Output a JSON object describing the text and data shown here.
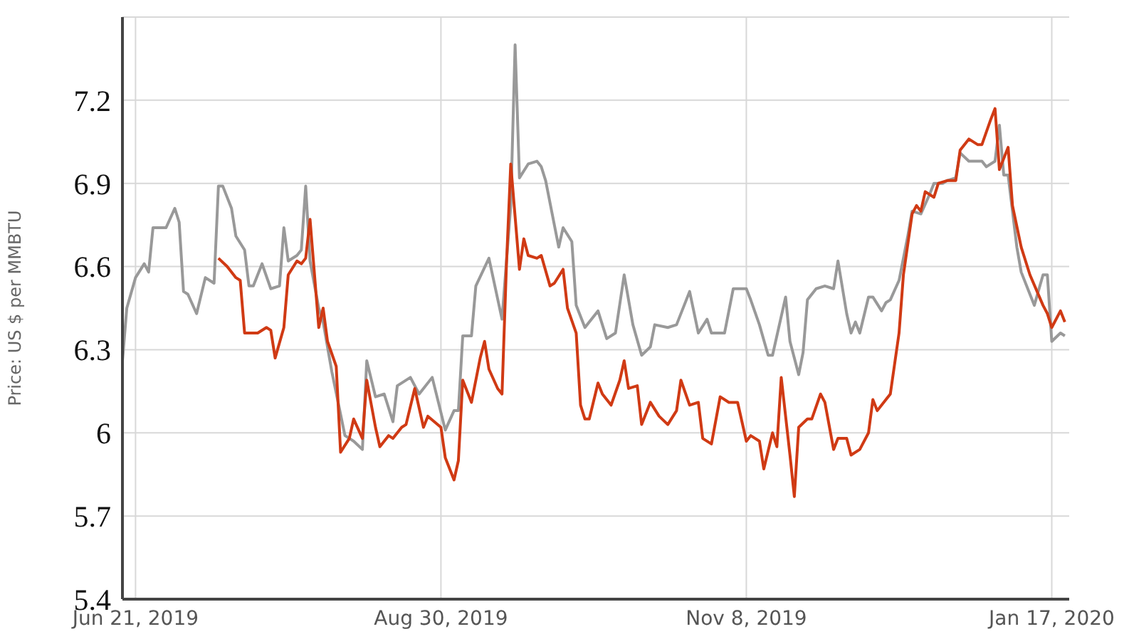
{
  "chart_data": {
    "type": "line",
    "ylabel": "Price: US $ per MMBTU",
    "xlim": [
      "2019-06-18",
      "2020-01-21"
    ],
    "xticks": [
      {
        "value": "2019-06-21",
        "label": "Jun 21, 2019"
      },
      {
        "value": "2019-08-30",
        "label": "Aug 30, 2019"
      },
      {
        "value": "2019-11-08",
        "label": "Nov 8, 2019"
      },
      {
        "value": "2020-01-17",
        "label": "Jan 17, 2020"
      }
    ],
    "ylim": [
      5.4,
      7.5
    ],
    "yticks": [
      5.4,
      5.7,
      6,
      6.3,
      6.6,
      6.9,
      7.2
    ],
    "grid": true,
    "legend": false,
    "series": [
      {
        "color": "#999999",
        "x": [
          "2019-06-18",
          "2019-06-19",
          "2019-06-21",
          "2019-06-23",
          "2019-06-24",
          "2019-06-25",
          "2019-06-28",
          "2019-06-30",
          "2019-07-01",
          "2019-07-02",
          "2019-07-03",
          "2019-07-05",
          "2019-07-07",
          "2019-07-09",
          "2019-07-10",
          "2019-07-11",
          "2019-07-13",
          "2019-07-14",
          "2019-07-16",
          "2019-07-17",
          "2019-07-18",
          "2019-07-20",
          "2019-07-22",
          "2019-07-24",
          "2019-07-25",
          "2019-07-26",
          "2019-07-28",
          "2019-07-29",
          "2019-07-30",
          "2019-07-31",
          "2019-08-02",
          "2019-08-03",
          "2019-08-05",
          "2019-08-08",
          "2019-08-10",
          "2019-08-12",
          "2019-08-13",
          "2019-08-15",
          "2019-08-17",
          "2019-08-19",
          "2019-08-20",
          "2019-08-23",
          "2019-08-25",
          "2019-08-28",
          "2019-08-31",
          "2019-09-02",
          "2019-09-03",
          "2019-09-04",
          "2019-09-06",
          "2019-09-07",
          "2019-09-10",
          "2019-09-13",
          "2019-09-15",
          "2019-09-16",
          "2019-09-17",
          "2019-09-19",
          "2019-09-21",
          "2019-09-22",
          "2019-09-23",
          "2019-09-26",
          "2019-09-27",
          "2019-09-29",
          "2019-09-30",
          "2019-10-02",
          "2019-10-05",
          "2019-10-07",
          "2019-10-09",
          "2019-10-11",
          "2019-10-13",
          "2019-10-15",
          "2019-10-17",
          "2019-10-18",
          "2019-10-21",
          "2019-10-23",
          "2019-10-26",
          "2019-10-28",
          "2019-10-30",
          "2019-10-31",
          "2019-11-03",
          "2019-11-05",
          "2019-11-08",
          "2019-11-09",
          "2019-11-11",
          "2019-11-13",
          "2019-11-14",
          "2019-11-17",
          "2019-11-18",
          "2019-11-20",
          "2019-11-21",
          "2019-11-22",
          "2019-11-24",
          "2019-11-26",
          "2019-11-28",
          "2019-11-29",
          "2019-12-01",
          "2019-12-02",
          "2019-12-03",
          "2019-12-04",
          "2019-12-06",
          "2019-12-07",
          "2019-12-09",
          "2019-12-10",
          "2019-12-11",
          "2019-12-13",
          "2019-12-15",
          "2019-12-16",
          "2019-12-18",
          "2019-12-20",
          "2019-12-21",
          "2019-12-23",
          "2019-12-24",
          "2019-12-26",
          "2019-12-27",
          "2019-12-29",
          "2020-01-01",
          "2020-01-02",
          "2020-01-04",
          "2020-01-05",
          "2020-01-06",
          "2020-01-07",
          "2020-01-09",
          "2020-01-10",
          "2020-01-12",
          "2020-01-13",
          "2020-01-15",
          "2020-01-16",
          "2020-01-17",
          "2020-01-19",
          "2020-01-20"
        ],
        "values": [
          6.26,
          6.45,
          6.56,
          6.61,
          6.58,
          6.74,
          6.74,
          6.81,
          6.76,
          6.51,
          6.5,
          6.43,
          6.56,
          6.54,
          6.89,
          6.89,
          6.81,
          6.71,
          6.66,
          6.53,
          6.53,
          6.61,
          6.52,
          6.53,
          6.74,
          6.62,
          6.64,
          6.66,
          6.89,
          6.62,
          6.45,
          6.4,
          6.22,
          5.99,
          5.97,
          5.94,
          6.26,
          6.13,
          6.14,
          6.04,
          6.17,
          6.2,
          6.14,
          6.2,
          6.01,
          6.08,
          6.08,
          6.35,
          6.35,
          6.53,
          6.63,
          6.41,
          6.82,
          7.4,
          6.92,
          6.97,
          6.98,
          6.96,
          6.91,
          6.67,
          6.74,
          6.69,
          6.46,
          6.38,
          6.44,
          6.34,
          6.36,
          6.57,
          6.39,
          6.28,
          6.31,
          6.39,
          6.38,
          6.39,
          6.51,
          6.36,
          6.41,
          6.36,
          6.36,
          6.52,
          6.52,
          6.48,
          6.39,
          6.28,
          6.28,
          6.49,
          6.33,
          6.21,
          6.29,
          6.48,
          6.52,
          6.53,
          6.52,
          6.62,
          6.43,
          6.36,
          6.4,
          6.36,
          6.49,
          6.49,
          6.44,
          6.47,
          6.48,
          6.55,
          6.71,
          6.8,
          6.79,
          6.86,
          6.9,
          6.9,
          6.91,
          6.92,
          7.01,
          6.98,
          6.98,
          6.96,
          6.98,
          7.11,
          6.93,
          6.93,
          6.67,
          6.58,
          6.5,
          6.46,
          6.57,
          6.57,
          6.33,
          6.36,
          6.35
        ]
      },
      {
        "color": "#d03a14",
        "x": [
          "2019-07-10",
          "2019-07-12",
          "2019-07-14",
          "2019-07-15",
          "2019-07-16",
          "2019-07-19",
          "2019-07-21",
          "2019-07-22",
          "2019-07-23",
          "2019-07-25",
          "2019-07-26",
          "2019-07-28",
          "2019-07-29",
          "2019-07-30",
          "2019-07-31",
          "2019-08-02",
          "2019-08-03",
          "2019-08-04",
          "2019-08-06",
          "2019-08-07",
          "2019-08-09",
          "2019-08-10",
          "2019-08-12",
          "2019-08-13",
          "2019-08-15",
          "2019-08-16",
          "2019-08-18",
          "2019-08-19",
          "2019-08-21",
          "2019-08-22",
          "2019-08-24",
          "2019-08-26",
          "2019-08-27",
          "2019-08-30",
          "2019-08-31",
          "2019-09-02",
          "2019-09-03",
          "2019-09-04",
          "2019-09-06",
          "2019-09-08",
          "2019-09-09",
          "2019-09-10",
          "2019-09-12",
          "2019-09-13",
          "2019-09-14",
          "2019-09-15",
          "2019-09-17",
          "2019-09-18",
          "2019-09-19",
          "2019-09-21",
          "2019-09-22",
          "2019-09-24",
          "2019-09-25",
          "2019-09-27",
          "2019-09-28",
          "2019-09-30",
          "2019-10-01",
          "2019-10-02",
          "2019-10-03",
          "2019-10-05",
          "2019-10-06",
          "2019-10-08",
          "2019-10-10",
          "2019-10-11",
          "2019-10-12",
          "2019-10-14",
          "2019-10-15",
          "2019-10-17",
          "2019-10-19",
          "2019-10-21",
          "2019-10-23",
          "2019-10-24",
          "2019-10-26",
          "2019-10-28",
          "2019-10-29",
          "2019-10-31",
          "2019-11-02",
          "2019-11-04",
          "2019-11-06",
          "2019-11-08",
          "2019-11-09",
          "2019-11-11",
          "2019-11-12",
          "2019-11-14",
          "2019-11-15",
          "2019-11-16",
          "2019-11-18",
          "2019-11-19",
          "2019-11-20",
          "2019-11-22",
          "2019-11-23",
          "2019-11-25",
          "2019-11-26",
          "2019-11-28",
          "2019-11-29",
          "2019-12-01",
          "2019-12-02",
          "2019-12-04",
          "2019-12-06",
          "2019-12-07",
          "2019-12-08",
          "2019-12-10",
          "2019-12-11",
          "2019-12-13",
          "2019-12-14",
          "2019-12-16",
          "2019-12-17",
          "2019-12-18",
          "2019-12-19",
          "2019-12-21",
          "2019-12-22",
          "2019-12-24",
          "2019-12-26",
          "2019-12-27",
          "2019-12-29",
          "2019-12-31",
          "2020-01-01",
          "2020-01-03",
          "2020-01-04",
          "2020-01-05",
          "2020-01-07",
          "2020-01-08",
          "2020-01-10",
          "2020-01-12",
          "2020-01-15",
          "2020-01-16",
          "2020-01-17",
          "2020-01-19",
          "2020-01-20"
        ],
        "values": [
          6.63,
          6.6,
          6.56,
          6.55,
          6.36,
          6.36,
          6.38,
          6.37,
          6.27,
          6.38,
          6.57,
          6.62,
          6.61,
          6.63,
          6.77,
          6.38,
          6.45,
          6.33,
          6.24,
          5.93,
          5.98,
          6.05,
          5.98,
          6.19,
          6.02,
          5.95,
          5.99,
          5.98,
          6.02,
          6.03,
          6.16,
          6.02,
          6.06,
          6.02,
          5.91,
          5.83,
          5.9,
          6.19,
          6.11,
          6.27,
          6.33,
          6.23,
          6.16,
          6.14,
          6.6,
          6.97,
          6.59,
          6.7,
          6.64,
          6.63,
          6.64,
          6.53,
          6.54,
          6.59,
          6.45,
          6.36,
          6.1,
          6.05,
          6.05,
          6.18,
          6.14,
          6.1,
          6.19,
          6.26,
          6.16,
          6.17,
          6.03,
          6.11,
          6.06,
          6.03,
          6.08,
          6.19,
          6.1,
          6.11,
          5.98,
          5.96,
          6.13,
          6.11,
          6.11,
          5.97,
          5.99,
          5.97,
          5.87,
          6,
          5.95,
          6.2,
          5.92,
          5.77,
          6.02,
          6.05,
          6.05,
          6.14,
          6.11,
          5.94,
          5.98,
          5.98,
          5.92,
          5.94,
          6,
          6.12,
          6.08,
          6.12,
          6.14,
          6.36,
          6.57,
          6.79,
          6.82,
          6.8,
          6.87,
          6.85,
          6.9,
          6.91,
          6.91,
          7.02,
          7.06,
          7.04,
          7.04,
          7.13,
          7.17,
          6.95,
          7.03,
          6.82,
          6.67,
          6.57,
          6.46,
          6.43,
          6.38,
          6.44,
          6.4
        ]
      }
    ]
  }
}
